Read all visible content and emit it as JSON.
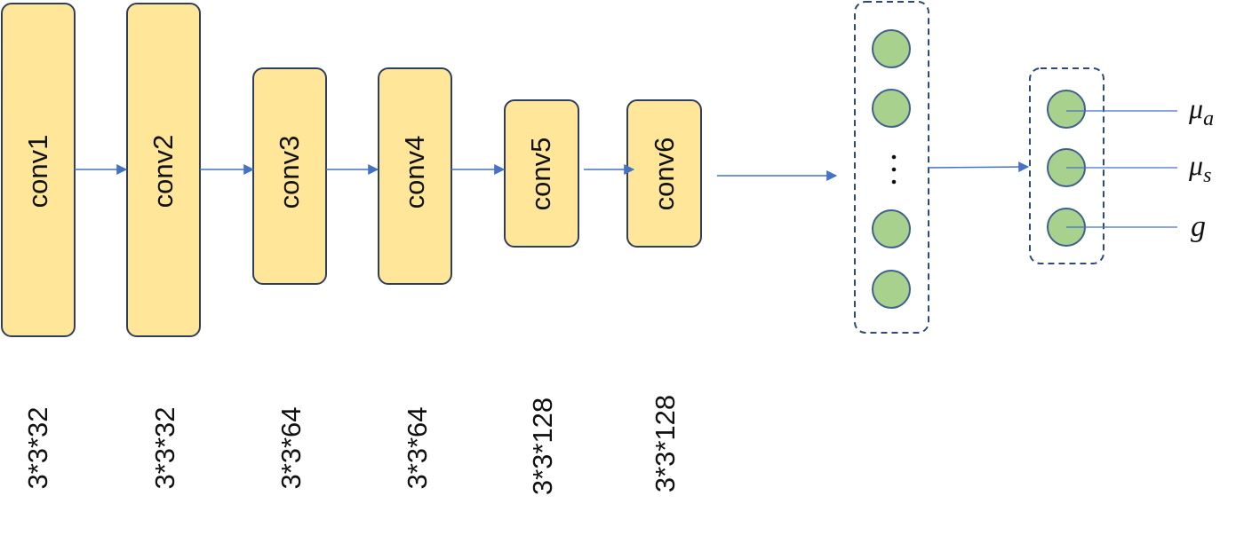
{
  "layers": [
    {
      "name": "conv1",
      "kernel": "3*3*32"
    },
    {
      "name": "conv2",
      "kernel": "3*3*32"
    },
    {
      "name": "conv3",
      "kernel": "3*3*64"
    },
    {
      "name": "conv4",
      "kernel": "3*3*64"
    },
    {
      "name": "conv5",
      "kernel": "3*3*128"
    },
    {
      "name": "conv6",
      "kernel": "3*3*128"
    }
  ],
  "fc_layer": {
    "ellipsis": "⋮"
  },
  "outputs": [
    {
      "symbol": "μ",
      "subscript": "a"
    },
    {
      "symbol": "μ",
      "subscript": "s"
    },
    {
      "symbol": "g",
      "subscript": ""
    }
  ],
  "colors": {
    "conv_fill": "#FFE699",
    "neuron_fill": "#A9D18E",
    "arrow": "#4472C4",
    "dashed_border": "#2F4A78"
  }
}
